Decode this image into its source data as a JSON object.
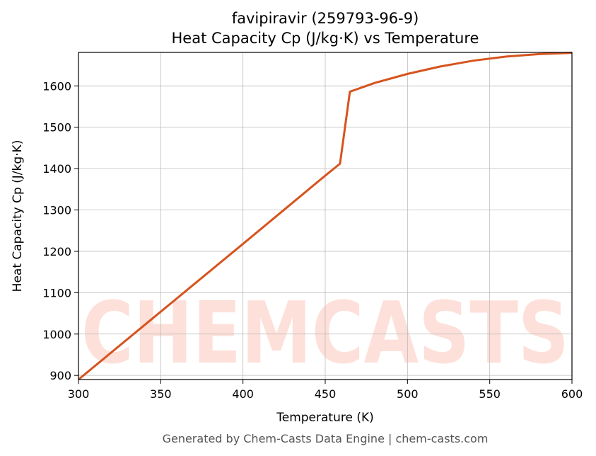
{
  "chart_data": {
    "type": "line",
    "title": "favipiravir (259793-96-9)",
    "subtitle": "Heat Capacity Cp (J/kg·K) vs Temperature",
    "x_label": "Temperature (K)",
    "y_label": "Heat Capacity Cp (J/kg·K)",
    "watermark": "CHEMCASTS",
    "footer": "Generated by Chem-Casts Data Engine | chem-casts.com",
    "x": [
      300,
      350,
      400,
      450,
      459,
      465,
      480,
      500,
      520,
      540,
      560,
      580,
      600
    ],
    "series": [
      {
        "name": "Cp",
        "color": "#d6541f",
        "values": [
          890,
          1054,
          1218,
          1383,
          1412,
          1586,
          1607,
          1629,
          1647,
          1661,
          1671,
          1677,
          1680
        ]
      }
    ],
    "xlim": [
      300,
      600
    ],
    "ylim": [
      890,
      1681
    ],
    "xticks": [
      300,
      350,
      400,
      450,
      500,
      550,
      600
    ],
    "yticks": [
      900,
      1000,
      1100,
      1200,
      1300,
      1400,
      1500,
      1600
    ],
    "grid": true
  }
}
